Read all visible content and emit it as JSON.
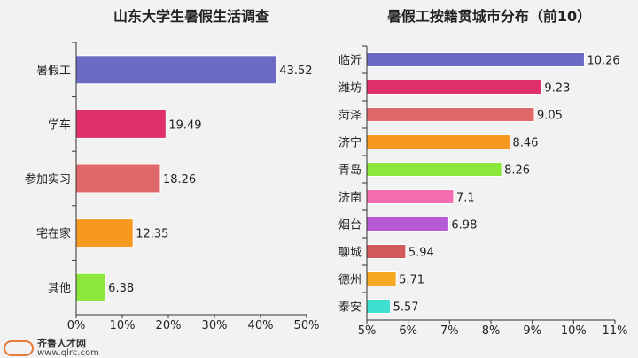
{
  "chart_data": [
    {
      "type": "bar",
      "orientation": "horizontal",
      "title": "山东大学生暑假生活调查",
      "categories": [
        "暑假工",
        "学车",
        "参加实习",
        "宅在家",
        "其他"
      ],
      "values": [
        43.52,
        19.49,
        18.26,
        12.35,
        6.38
      ],
      "value_labels": [
        "43.52",
        "19.49",
        "18.26",
        "12.35",
        "6.38"
      ],
      "colors": [
        "#6b6bc6",
        "#e0306b",
        "#e06868",
        "#f7981f",
        "#8be83a"
      ],
      "xlim": [
        0,
        50
      ],
      "xticks": [
        0,
        10,
        20,
        30,
        40,
        50
      ],
      "xtick_labels": [
        "0%",
        "10%",
        "20%",
        "30%",
        "40%",
        "50%"
      ],
      "grid": false
    },
    {
      "type": "bar",
      "orientation": "horizontal",
      "title": "暑假工按籍贯城市分布（前10）",
      "categories": [
        "临沂",
        "潍坊",
        "菏泽",
        "济宁",
        "青岛",
        "济南",
        "烟台",
        "聊城",
        "德州",
        "泰安"
      ],
      "values": [
        10.26,
        9.23,
        9.05,
        8.46,
        8.26,
        7.1,
        6.98,
        5.94,
        5.71,
        5.57
      ],
      "value_labels": [
        "10.26",
        "9.23",
        "9.05",
        "8.46",
        "8.26",
        "7.1",
        "6.98",
        "5.94",
        "5.71",
        "5.57"
      ],
      "colors": [
        "#6b6bc6",
        "#e0306b",
        "#e06868",
        "#f7981f",
        "#8be83a",
        "#f56cb0",
        "#b65ad6",
        "#d05a5a",
        "#f5a820",
        "#40e0d0"
      ],
      "xlim": [
        5,
        11
      ],
      "xticks": [
        5,
        6,
        7,
        8,
        9,
        10,
        11
      ],
      "xtick_labels": [
        "5%",
        "6%",
        "7%",
        "8%",
        "9%",
        "10%",
        "11%"
      ],
      "grid": false
    }
  ],
  "logo": {
    "name": "齐鲁人才网",
    "url": "www.qlrc.com"
  }
}
